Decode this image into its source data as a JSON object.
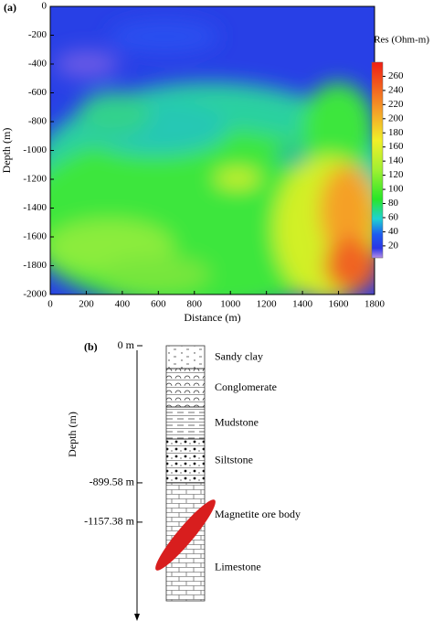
{
  "chart_data": [
    {
      "type": "contour",
      "label": "(a)",
      "x_label": "Distance (m)",
      "y_label": "Depth (m)",
      "xlim": [
        0,
        1800
      ],
      "xticks": [
        0,
        200,
        400,
        600,
        800,
        1000,
        1200,
        1400,
        1600,
        1800
      ],
      "ylim": [
        -2000,
        0
      ],
      "yticks": [
        -2000,
        -1800,
        -1600,
        -1400,
        -1200,
        -1000,
        -800,
        -600,
        -400,
        -200,
        0
      ],
      "colorbar": {
        "label": "Res (Ohm-m)",
        "lim": [
          3,
          280
        ],
        "ticks": [
          20,
          40,
          60,
          80,
          100,
          120,
          140,
          160,
          180,
          200,
          220,
          240,
          260
        ]
      }
    },
    {
      "type": "column",
      "label": "(b)",
      "y_label": "Depth (m)",
      "ylim": [
        -1800,
        0
      ],
      "yticks": [
        {
          "value": 0,
          "label": "0 m"
        },
        {
          "value": -899.58,
          "label": "-899.58 m"
        },
        {
          "value": -1157.38,
          "label": "-1157.38 m"
        }
      ],
      "layers": [
        {
          "name": "Sandy clay",
          "top": 0,
          "bottom": -150
        },
        {
          "name": "Conglomerate",
          "top": -150,
          "bottom": -402
        },
        {
          "name": "Mudstone",
          "top": -402,
          "bottom": -612
        },
        {
          "name": "Siltstone",
          "top": -612,
          "bottom": -899.58
        },
        {
          "name": "Limestone",
          "top": -899.58,
          "bottom": -1674
        }
      ],
      "ore_body": {
        "name": "Magnetite ore body"
      }
    }
  ]
}
